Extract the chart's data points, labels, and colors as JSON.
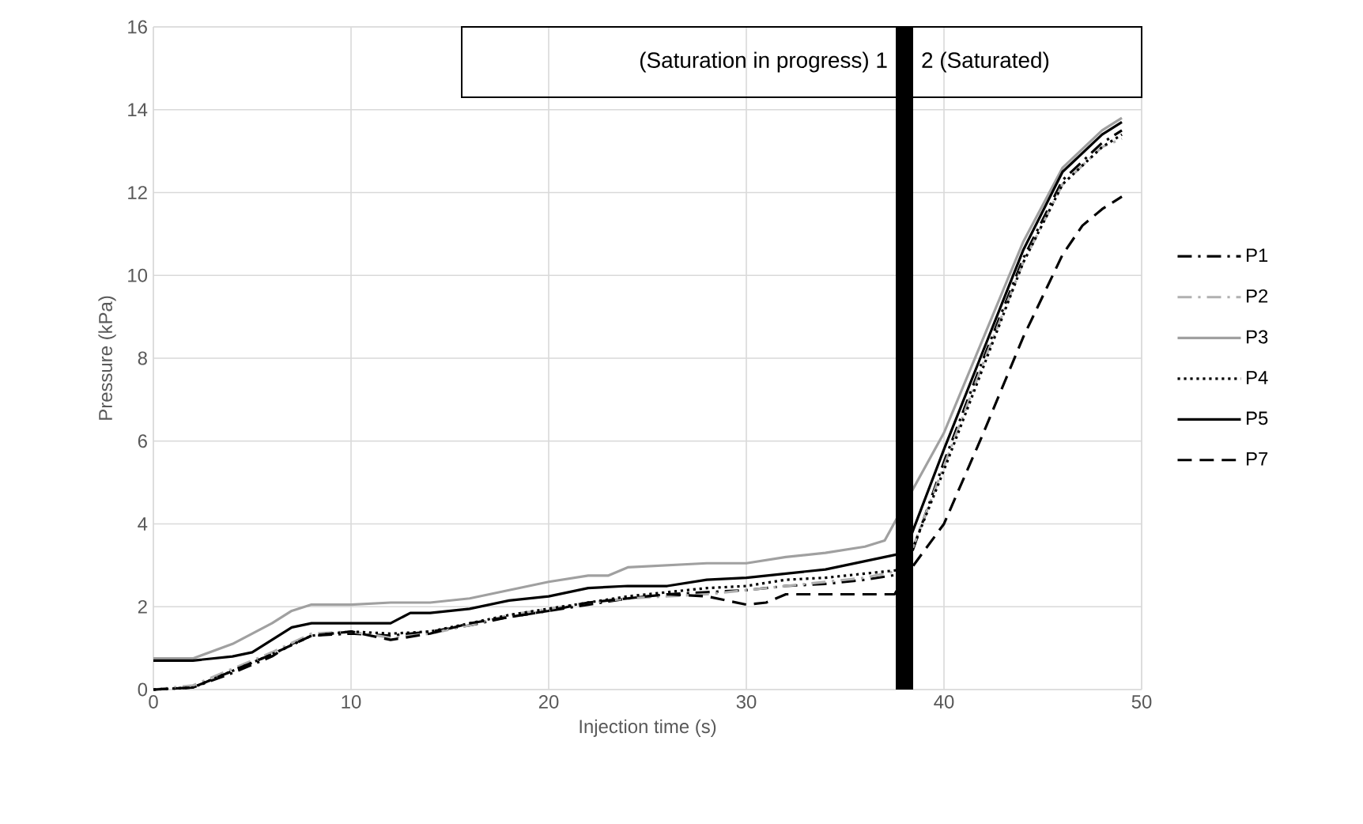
{
  "chart_data": {
    "type": "line",
    "xlabel": "Injection time (s)",
    "ylabel": "Pressure (kPa)",
    "xlim": [
      0,
      50
    ],
    "ylim": [
      0,
      16
    ],
    "xticks": [
      0,
      10,
      20,
      30,
      40,
      50
    ],
    "yticks": [
      0,
      2,
      4,
      6,
      8,
      10,
      12,
      14,
      16
    ],
    "grid": true,
    "legend": "right",
    "marker": "none",
    "ref_lines": [
      {
        "axis": "x",
        "value": 38,
        "color": "#000000"
      }
    ],
    "annotations": [
      "(Saturation in progress) 1",
      "2 (Saturated)"
    ],
    "series": [
      {
        "name": "P1",
        "color": "#000000",
        "line_style": "dashdot",
        "x": [
          0,
          2,
          4,
          6,
          7,
          8,
          10,
          12,
          14,
          16,
          18,
          20,
          22,
          24,
          26,
          28,
          30,
          32,
          34,
          36,
          38,
          40,
          42,
          44,
          46,
          48,
          49
        ],
        "values": [
          0,
          0.05,
          0.4,
          0.8,
          1.1,
          1.3,
          1.35,
          1.3,
          1.4,
          1.55,
          1.75,
          1.9,
          2.05,
          2.2,
          2.3,
          2.35,
          2.4,
          2.5,
          2.55,
          2.65,
          2.8,
          5.5,
          8.0,
          10.4,
          12.3,
          13.2,
          13.5
        ]
      },
      {
        "name": "P2",
        "color": "#b0b0b0",
        "line_style": "dashdot",
        "x": [
          0,
          2,
          4,
          6,
          8,
          10,
          12,
          14,
          16,
          18,
          20,
          22,
          24,
          26,
          28,
          30,
          32,
          34,
          36,
          38,
          40,
          42,
          44,
          46,
          48,
          49
        ],
        "values": [
          0,
          0.1,
          0.5,
          0.9,
          1.35,
          1.4,
          1.25,
          1.35,
          1.55,
          1.8,
          1.95,
          2.1,
          2.2,
          2.25,
          2.3,
          2.4,
          2.5,
          2.6,
          2.7,
          2.9,
          5.4,
          7.9,
          10.3,
          12.2,
          13.1,
          13.3
        ]
      },
      {
        "name": "P3",
        "color": "#a0a0a0",
        "line_style": "solid",
        "x": [
          0,
          2,
          4,
          6,
          7,
          8,
          10,
          12,
          14,
          16,
          18,
          20,
          22,
          23,
          24,
          26,
          28,
          30,
          32,
          34,
          36,
          37,
          40,
          42,
          44,
          46,
          48,
          49
        ],
        "values": [
          0.75,
          0.75,
          1.1,
          1.6,
          1.9,
          2.05,
          2.05,
          2.1,
          2.1,
          2.2,
          2.4,
          2.6,
          2.75,
          2.75,
          2.95,
          3.0,
          3.05,
          3.05,
          3.2,
          3.3,
          3.45,
          3.6,
          6.2,
          8.5,
          10.8,
          12.6,
          13.5,
          13.8
        ]
      },
      {
        "name": "P4",
        "color": "#000000",
        "line_style": "dotted",
        "x": [
          0,
          2,
          4,
          6,
          8,
          10,
          12,
          14,
          16,
          18,
          20,
          22,
          24,
          26,
          28,
          30,
          32,
          34,
          36,
          38,
          40,
          42,
          44,
          46,
          48,
          49
        ],
        "values": [
          0,
          0.05,
          0.45,
          0.85,
          1.3,
          1.4,
          1.35,
          1.4,
          1.6,
          1.8,
          1.95,
          2.1,
          2.25,
          2.35,
          2.45,
          2.5,
          2.65,
          2.7,
          2.8,
          2.9,
          5.3,
          7.8,
          10.3,
          12.2,
          13.1,
          13.4
        ]
      },
      {
        "name": "P5",
        "color": "#000000",
        "line_style": "solid",
        "x": [
          0,
          2,
          4,
          5,
          6,
          7,
          8,
          10,
          12,
          13,
          14,
          16,
          18,
          20,
          22,
          24,
          26,
          28,
          30,
          32,
          34,
          36,
          38,
          40,
          42,
          44,
          46,
          48,
          49
        ],
        "values": [
          0.7,
          0.7,
          0.8,
          0.9,
          1.2,
          1.5,
          1.6,
          1.6,
          1.6,
          1.85,
          1.85,
          1.95,
          2.15,
          2.25,
          2.45,
          2.5,
          2.5,
          2.65,
          2.7,
          2.8,
          2.9,
          3.1,
          3.3,
          5.8,
          8.2,
          10.6,
          12.5,
          13.4,
          13.7
        ]
      },
      {
        "name": "P7",
        "color": "#000000",
        "line_style": "dashed",
        "x": [
          0,
          2,
          4,
          6,
          8,
          10,
          12,
          14,
          16,
          18,
          20,
          22,
          24,
          26,
          28,
          30,
          31,
          32,
          34,
          36,
          37.5,
          38,
          40,
          42,
          44,
          46,
          47,
          48,
          49
        ],
        "values": [
          0,
          0.05,
          0.45,
          0.85,
          1.3,
          1.4,
          1.2,
          1.35,
          1.6,
          1.75,
          1.9,
          2.1,
          2.2,
          2.3,
          2.25,
          2.05,
          2.1,
          2.3,
          2.3,
          2.3,
          2.3,
          2.7,
          4.0,
          6.2,
          8.5,
          10.5,
          11.2,
          11.6,
          11.9
        ]
      }
    ]
  }
}
